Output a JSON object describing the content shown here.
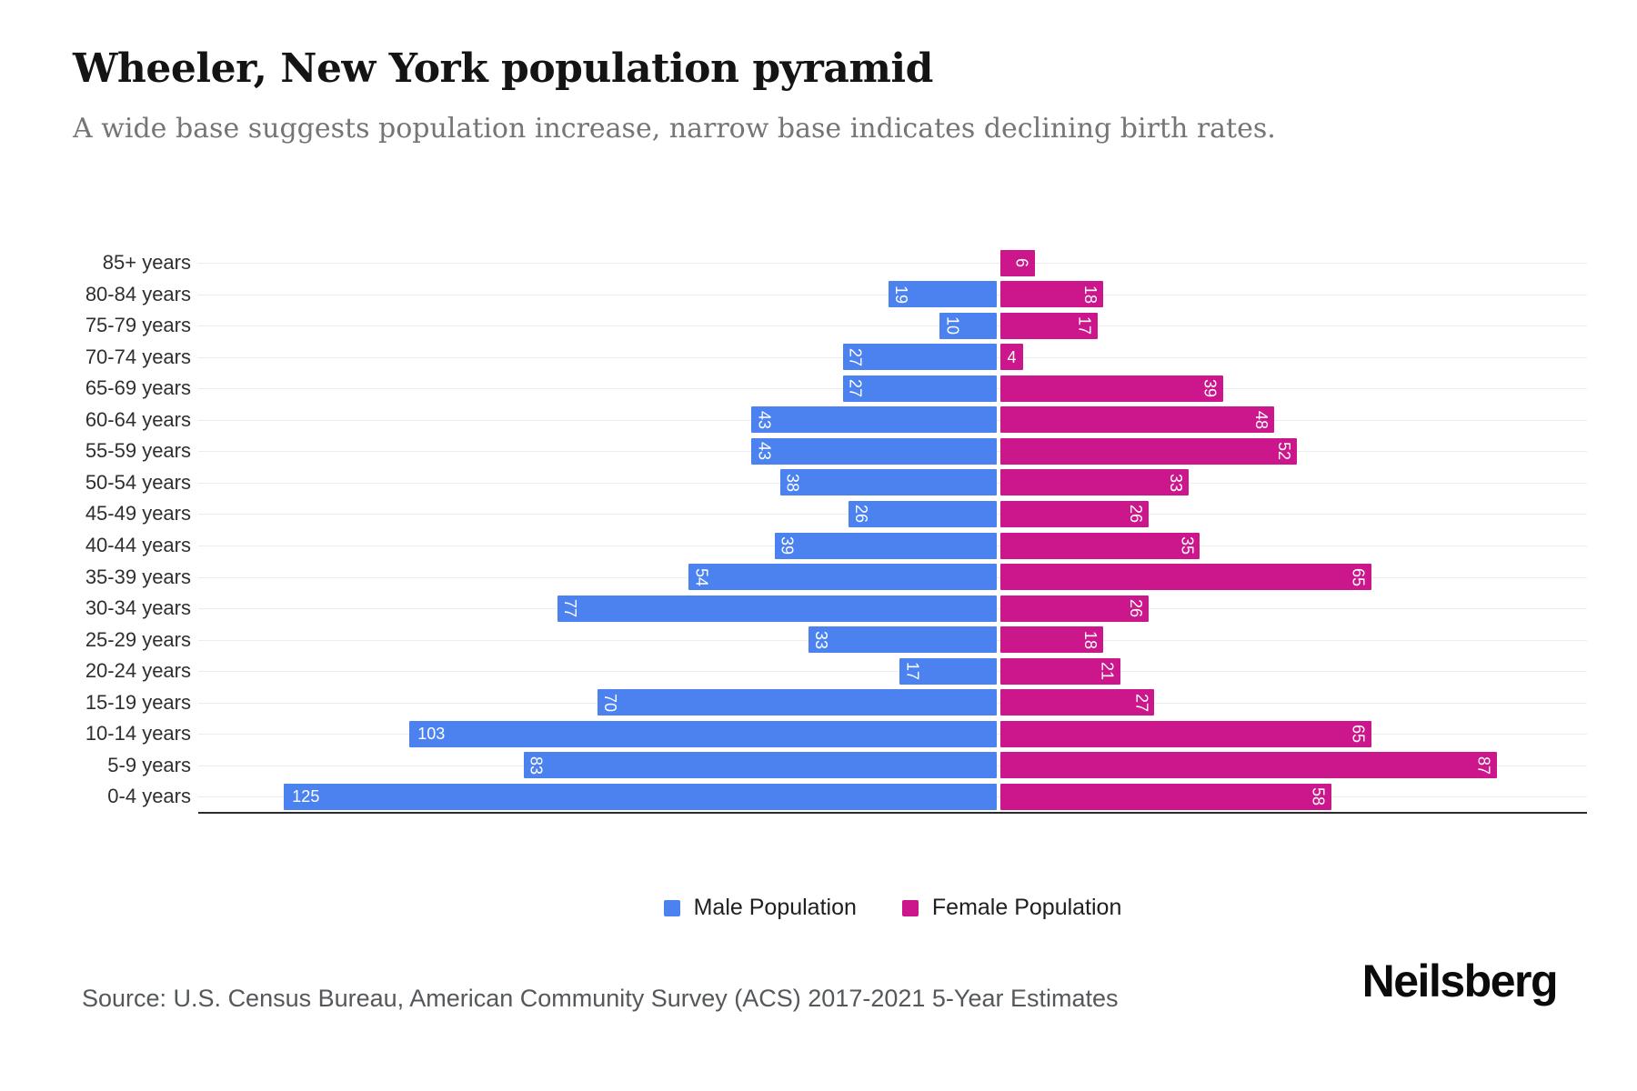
{
  "header": {
    "title": "Wheeler, New York population pyramid",
    "subtitle": "A wide base suggests population increase, narrow base indicates declining birth rates."
  },
  "chart_data": {
    "type": "bar",
    "variant": "population-pyramid-diverging-horizontal",
    "title": "Wheeler, New York population pyramid",
    "categories": [
      "85+ years",
      "80-84 years",
      "75-79 years",
      "70-74 years",
      "65-69 years",
      "60-64 years",
      "55-59 years",
      "50-54 years",
      "45-49 years",
      "40-44 years",
      "35-39 years",
      "30-34 years",
      "25-29 years",
      "20-24 years",
      "15-19 years",
      "10-14 years",
      "5-9 years",
      "0-4 years"
    ],
    "series": [
      {
        "name": "Male Population",
        "side": "left",
        "color": "#4B82F0",
        "values": [
          0,
          19,
          10,
          27,
          27,
          43,
          43,
          38,
          26,
          39,
          54,
          77,
          33,
          17,
          70,
          103,
          83,
          125
        ]
      },
      {
        "name": "Female Population",
        "side": "right",
        "color": "#CC168C",
        "values": [
          6,
          18,
          17,
          4,
          39,
          48,
          52,
          33,
          26,
          35,
          65,
          26,
          18,
          21,
          27,
          65,
          87,
          58
        ]
      }
    ],
    "value_labels": "inside-bar-end",
    "grid": true,
    "legend_position": "bottom-center",
    "xlim_left_units": 137,
    "xlim_right_units": 103
  },
  "legend": {
    "items": [
      {
        "id": "male",
        "label": "Male Population",
        "color": "#4B82F0"
      },
      {
        "id": "female",
        "label": "Female Population",
        "color": "#CC168C"
      }
    ]
  },
  "footer": {
    "source": "Source: U.S. Census Bureau, American Community Survey (ACS) 2017-2021 5-Year Estimates",
    "brand": "Neilsberg"
  },
  "colors": {
    "male": "#4B82F0",
    "female": "#CC168C",
    "grid": "#ededed",
    "axis": "#2b2b2b",
    "title": "#141414",
    "subtitle": "#757575",
    "tick": "#2f2f2f",
    "source": "#55585b",
    "bar_label": "#ffffff"
  }
}
